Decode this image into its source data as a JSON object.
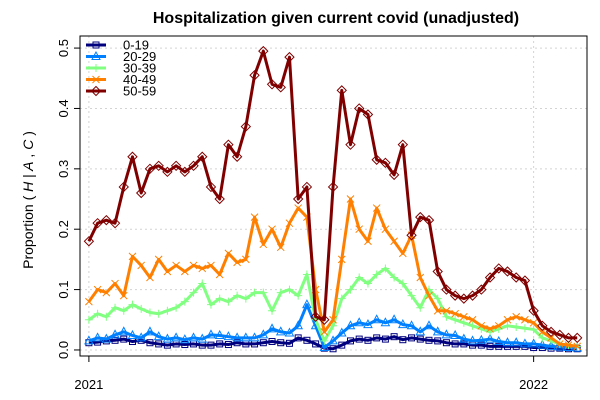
{
  "chart_data": {
    "type": "line",
    "title": "Hospitalization given current covid (unadjusted)",
    "ylabel": "Proportion ( H | A , C )",
    "ylabel_parts": [
      "Proportion (",
      "H",
      "|",
      "A",
      ",",
      "C",
      ")"
    ],
    "xlabel": "",
    "xlim": [
      2020.98,
      2022.12
    ],
    "ylim": [
      -0.01,
      0.52
    ],
    "xticks": [
      {
        "value": 2021.0,
        "label": "2021"
      },
      {
        "value": 2022.0,
        "label": "2022"
      }
    ],
    "yticks": [
      {
        "value": 0.0,
        "label": "0.0"
      },
      {
        "value": 0.1,
        "label": "0.1"
      },
      {
        "value": 0.2,
        "label": "0.2"
      },
      {
        "value": 0.3,
        "label": "0.3"
      },
      {
        "value": 0.4,
        "label": "0.4"
      },
      {
        "value": 0.5,
        "label": "0.5"
      }
    ],
    "grid": true,
    "legend_position": "top-left",
    "x": [
      2021.0,
      2021.0196,
      2021.0392,
      2021.0588,
      2021.0784,
      2021.098,
      2021.1176,
      2021.1373,
      2021.1569,
      2021.1765,
      2021.1961,
      2021.2157,
      2021.2353,
      2021.2549,
      2021.2745,
      2021.2941,
      2021.3137,
      2021.3333,
      2021.3529,
      2021.3725,
      2021.3922,
      2021.4118,
      2021.4314,
      2021.451,
      2021.4706,
      2021.4902,
      2021.5098,
      2021.5294,
      2021.549,
      2021.5686,
      2021.5882,
      2021.6078,
      2021.6275,
      2021.6471,
      2021.6667,
      2021.6863,
      2021.7059,
      2021.7255,
      2021.7451,
      2021.7647,
      2021.7843,
      2021.8039,
      2021.8235,
      2021.8431,
      2021.8627,
      2021.8824,
      2021.902,
      2021.9216,
      2021.9412,
      2021.9608,
      2021.9804,
      2022.0,
      2022.0196,
      2022.0392,
      2022.0588,
      2022.0784,
      2022.098
    ],
    "series": [
      {
        "name": "0-19",
        "color": "#00007f",
        "marker": "square",
        "values": [
          0.012,
          0.013,
          0.015,
          0.016,
          0.018,
          0.014,
          0.016,
          0.012,
          0.01,
          0.008,
          0.01,
          0.009,
          0.01,
          0.008,
          0.008,
          0.01,
          0.009,
          0.012,
          0.01,
          0.01,
          0.012,
          0.014,
          0.012,
          0.011,
          0.02,
          0.016,
          0.01,
          0.003,
          0.002,
          0.008,
          0.015,
          0.018,
          0.016,
          0.02,
          0.018,
          0.022,
          0.017,
          0.02,
          0.018,
          0.016,
          0.015,
          0.012,
          0.01,
          0.01,
          0.008,
          0.008,
          0.006,
          0.006,
          0.006,
          0.006,
          0.006,
          0.004,
          0.004,
          0.003,
          0.003,
          0.002,
          0.002
        ]
      },
      {
        "name": "20-29",
        "color": "#0080ff",
        "marker": "triangle",
        "values": [
          0.015,
          0.02,
          0.018,
          0.025,
          0.03,
          0.024,
          0.02,
          0.03,
          0.022,
          0.018,
          0.02,
          0.017,
          0.02,
          0.018,
          0.025,
          0.024,
          0.022,
          0.02,
          0.02,
          0.02,
          0.025,
          0.035,
          0.03,
          0.028,
          0.04,
          0.075,
          0.04,
          0.004,
          0.015,
          0.028,
          0.04,
          0.045,
          0.042,
          0.05,
          0.045,
          0.05,
          0.042,
          0.04,
          0.03,
          0.04,
          0.03,
          0.025,
          0.024,
          0.018,
          0.015,
          0.016,
          0.018,
          0.014,
          0.012,
          0.012,
          0.01,
          0.01,
          0.008,
          0.006,
          0.005,
          0.004,
          0.003
        ]
      },
      {
        "name": "30-39",
        "color": "#80ff80",
        "marker": "plus",
        "values": [
          0.05,
          0.06,
          0.055,
          0.07,
          0.065,
          0.075,
          0.068,
          0.062,
          0.06,
          0.065,
          0.07,
          0.08,
          0.095,
          0.11,
          0.075,
          0.085,
          0.08,
          0.09,
          0.085,
          0.095,
          0.095,
          0.065,
          0.095,
          0.1,
          0.09,
          0.125,
          0.05,
          0.015,
          0.04,
          0.085,
          0.1,
          0.12,
          0.11,
          0.125,
          0.135,
          0.12,
          0.11,
          0.09,
          0.07,
          0.1,
          0.085,
          0.055,
          0.05,
          0.045,
          0.04,
          0.035,
          0.03,
          0.035,
          0.04,
          0.038,
          0.036,
          0.034,
          0.02,
          0.015,
          0.01,
          0.008,
          0.006
        ]
      },
      {
        "name": "40-49",
        "color": "#ff8000",
        "marker": "cross",
        "values": [
          0.08,
          0.1,
          0.095,
          0.11,
          0.09,
          0.155,
          0.14,
          0.12,
          0.15,
          0.13,
          0.14,
          0.13,
          0.14,
          0.135,
          0.14,
          0.125,
          0.16,
          0.145,
          0.15,
          0.22,
          0.175,
          0.2,
          0.17,
          0.21,
          0.235,
          0.22,
          0.1,
          0.03,
          0.05,
          0.15,
          0.25,
          0.2,
          0.18,
          0.235,
          0.2,
          0.18,
          0.16,
          0.19,
          0.12,
          0.09,
          0.065,
          0.065,
          0.06,
          0.055,
          0.05,
          0.04,
          0.035,
          0.04,
          0.05,
          0.055,
          0.05,
          0.045,
          0.03,
          0.02,
          0.01,
          0.008,
          0.006
        ]
      },
      {
        "name": "50-59",
        "color": "#800000",
        "marker": "diamond",
        "values": [
          0.18,
          0.21,
          0.215,
          0.21,
          0.27,
          0.32,
          0.26,
          0.3,
          0.305,
          0.295,
          0.305,
          0.295,
          0.305,
          0.32,
          0.27,
          0.25,
          0.34,
          0.32,
          0.37,
          0.455,
          0.495,
          0.44,
          0.435,
          0.485,
          0.25,
          0.27,
          0.055,
          0.05,
          0.27,
          0.43,
          0.34,
          0.4,
          0.39,
          0.315,
          0.31,
          0.29,
          0.34,
          0.19,
          0.22,
          0.215,
          0.13,
          0.1,
          0.09,
          0.085,
          0.09,
          0.1,
          0.12,
          0.135,
          0.13,
          0.12,
          0.115,
          0.065,
          0.04,
          0.03,
          0.025,
          0.02,
          0.02
        ]
      }
    ]
  }
}
